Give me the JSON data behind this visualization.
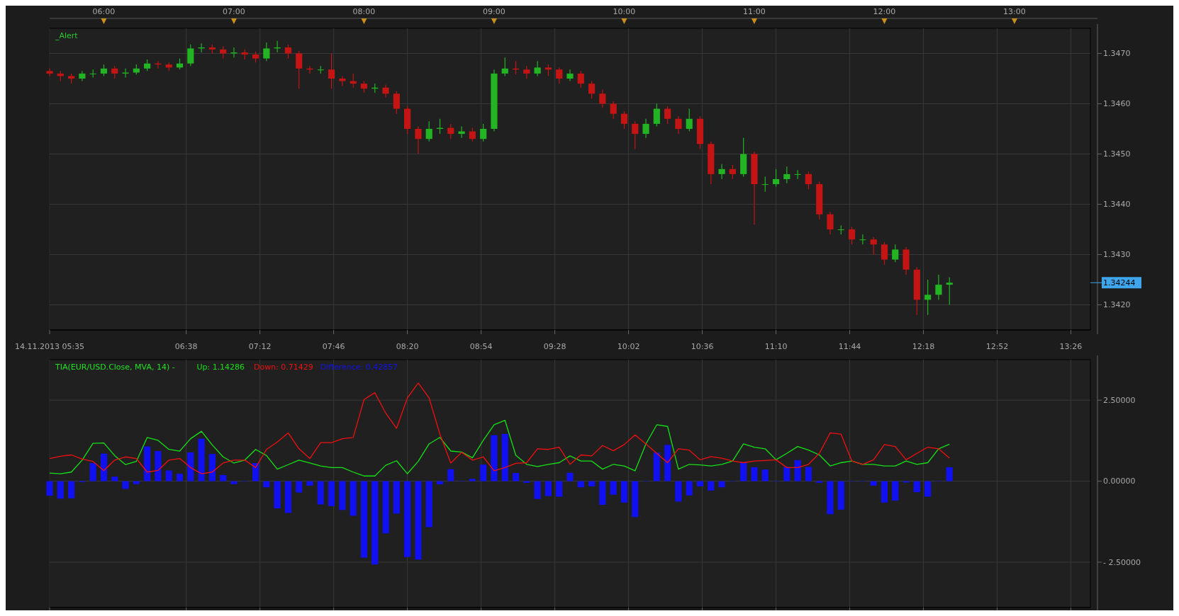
{
  "chart_data": [
    {
      "type": "candlestick",
      "x": [
        5.5833,
        5.6667,
        5.75,
        5.8333,
        5.9167,
        6,
        6.0833,
        6.1667,
        6.25,
        6.3333,
        6.4167,
        6.5,
        6.5833,
        6.6667,
        6.75,
        6.8333,
        6.9167,
        7,
        7.0833,
        7.1667,
        7.25,
        7.3333,
        7.4167,
        7.5,
        7.5833,
        7.6667,
        7.75,
        7.8333,
        7.9167,
        8,
        8.0833,
        8.1667,
        8.25,
        8.3333,
        8.4167,
        8.5,
        8.5833,
        8.6667,
        8.75,
        8.8333,
        8.9167,
        9,
        9.0833,
        9.1667,
        9.25,
        9.3333,
        9.4167,
        9.5,
        9.5833,
        9.6667,
        9.75,
        9.8333,
        9.9167,
        10,
        10.0833,
        10.1667,
        10.25,
        10.3333,
        10.4167,
        10.5,
        10.5833,
        10.6667,
        10.75,
        10.8333,
        10.9167,
        11,
        11.0833,
        11.1667,
        11.25,
        11.3333,
        11.4167,
        11.5,
        11.5833,
        11.6667,
        11.75,
        11.8333,
        11.9167,
        12,
        12.0833,
        12.1667,
        12.25,
        12.3333,
        12.4167,
        12.5
      ],
      "ohlc": [
        [
          1.34665,
          1.3467,
          1.34655,
          1.3466
        ],
        [
          1.3466,
          1.34665,
          1.34645,
          1.34655
        ],
        [
          1.34655,
          1.3466,
          1.3464,
          1.3465
        ],
        [
          1.3465,
          1.34665,
          1.34645,
          1.3466
        ],
        [
          1.3466,
          1.34668,
          1.34652,
          1.3466
        ],
        [
          1.3466,
          1.34678,
          1.34655,
          1.3467
        ],
        [
          1.3467,
          1.34675,
          1.3465,
          1.3466
        ],
        [
          1.3466,
          1.3467,
          1.34652,
          1.34662
        ],
        [
          1.34662,
          1.34678,
          1.34658,
          1.3467
        ],
        [
          1.3467,
          1.34688,
          1.34665,
          1.3468
        ],
        [
          1.3468,
          1.34685,
          1.3467,
          1.34678
        ],
        [
          1.34678,
          1.34682,
          1.34665,
          1.34672
        ],
        [
          1.34672,
          1.3469,
          1.34668,
          1.3468
        ],
        [
          1.3468,
          1.34718,
          1.34675,
          1.3471
        ],
        [
          1.3471,
          1.3472,
          1.34702,
          1.34712
        ],
        [
          1.34712,
          1.34718,
          1.347,
          1.34708
        ],
        [
          1.34708,
          1.34714,
          1.3469,
          1.347
        ],
        [
          1.347,
          1.34712,
          1.34692,
          1.34702
        ],
        [
          1.34702,
          1.34708,
          1.34688,
          1.34698
        ],
        [
          1.34698,
          1.34704,
          1.34682,
          1.3469
        ],
        [
          1.3469,
          1.34722,
          1.34685,
          1.3471
        ],
        [
          1.3471,
          1.34725,
          1.34702,
          1.34712
        ],
        [
          1.34712,
          1.34718,
          1.3469,
          1.347
        ],
        [
          1.347,
          1.34705,
          1.3463,
          1.3467
        ],
        [
          1.3467,
          1.34675,
          1.3466,
          1.34668
        ],
        [
          1.34668,
          1.34675,
          1.3466,
          1.34668
        ],
        [
          1.34668,
          1.347,
          1.3463,
          1.3465
        ],
        [
          1.3465,
          1.34655,
          1.34635,
          1.34645
        ],
        [
          1.34645,
          1.3466,
          1.34632,
          1.3464
        ],
        [
          1.3464,
          1.34645,
          1.34622,
          1.3463
        ],
        [
          1.3463,
          1.3464,
          1.34622,
          1.34632
        ],
        [
          1.34632,
          1.34638,
          1.34612,
          1.3462
        ],
        [
          1.3462,
          1.34625,
          1.3458,
          1.3459
        ],
        [
          1.3459,
          1.34595,
          1.3454,
          1.3455
        ],
        [
          1.3455,
          1.34555,
          1.345,
          1.3453
        ],
        [
          1.3453,
          1.34565,
          1.34525,
          1.3455
        ],
        [
          1.3455,
          1.3457,
          1.3454,
          1.34552
        ],
        [
          1.34552,
          1.3456,
          1.3453,
          1.3454
        ],
        [
          1.3454,
          1.34555,
          1.34532,
          1.34545
        ],
        [
          1.34545,
          1.34552,
          1.34525,
          1.3453
        ],
        [
          1.3453,
          1.3456,
          1.34525,
          1.3455
        ],
        [
          1.3455,
          1.34668,
          1.34545,
          1.3466
        ],
        [
          1.3466,
          1.34692,
          1.34655,
          1.3467
        ],
        [
          1.3467,
          1.34685,
          1.34658,
          1.34668
        ],
        [
          1.34668,
          1.34675,
          1.3465,
          1.3466
        ],
        [
          1.3466,
          1.34685,
          1.34655,
          1.34672
        ],
        [
          1.34672,
          1.34678,
          1.34655,
          1.34668
        ],
        [
          1.34668,
          1.34672,
          1.3464,
          1.3465
        ],
        [
          1.3465,
          1.34668,
          1.34645,
          1.3466
        ],
        [
          1.3466,
          1.34665,
          1.34632,
          1.3464
        ],
        [
          1.3464,
          1.34645,
          1.3461,
          1.3462
        ],
        [
          1.3462,
          1.34628,
          1.34592,
          1.346
        ],
        [
          1.346,
          1.34605,
          1.3457,
          1.3458
        ],
        [
          1.3458,
          1.34585,
          1.3455,
          1.3456
        ],
        [
          1.3456,
          1.34565,
          1.3451,
          1.3454
        ],
        [
          1.3454,
          1.3457,
          1.34532,
          1.3456
        ],
        [
          1.3456,
          1.346,
          1.34555,
          1.3459
        ],
        [
          1.3459,
          1.34595,
          1.3456,
          1.3457
        ],
        [
          1.3457,
          1.34575,
          1.3454,
          1.3455
        ],
        [
          1.3455,
          1.3459,
          1.34545,
          1.3457
        ],
        [
          1.3457,
          1.34575,
          1.3451,
          1.3452
        ],
        [
          1.3452,
          1.34525,
          1.3444,
          1.3446
        ],
        [
          1.3446,
          1.3448,
          1.3445,
          1.3447
        ],
        [
          1.3447,
          1.34478,
          1.3445,
          1.3446
        ],
        [
          1.3446,
          1.34532,
          1.34455,
          1.345
        ],
        [
          1.345,
          1.34505,
          1.3436,
          1.3444
        ],
        [
          1.3444,
          1.34455,
          1.34425,
          1.3444
        ],
        [
          1.3444,
          1.3447,
          1.34435,
          1.3445
        ],
        [
          1.3445,
          1.34475,
          1.34442,
          1.3446
        ],
        [
          1.3446,
          1.34468,
          1.3445,
          1.3446
        ],
        [
          1.3446,
          1.34465,
          1.3443,
          1.3444
        ],
        [
          1.3444,
          1.34445,
          1.3437,
          1.3438
        ],
        [
          1.3438,
          1.34385,
          1.3434,
          1.3435
        ],
        [
          1.3435,
          1.34358,
          1.3434,
          1.3435
        ],
        [
          1.3435,
          1.34355,
          1.3432,
          1.3433
        ],
        [
          1.3433,
          1.3434,
          1.3432,
          1.3433
        ],
        [
          1.3433,
          1.34335,
          1.343,
          1.3432
        ],
        [
          1.3432,
          1.34325,
          1.3428,
          1.3429
        ],
        [
          1.3429,
          1.3432,
          1.34285,
          1.3431
        ],
        [
          1.3431,
          1.34315,
          1.3426,
          1.3427
        ],
        [
          1.3427,
          1.34275,
          1.3418,
          1.3421
        ],
        [
          1.3421,
          1.3425,
          1.3418,
          1.3422
        ],
        [
          1.3422,
          1.3426,
          1.3421,
          1.3424
        ],
        [
          1.3424,
          1.34255,
          1.342,
          1.34244
        ]
      ],
      "colors": [
        "#c41414",
        "#c41414",
        "#c41414",
        "#22b422",
        "#22b422",
        "#22b422",
        "#c41414",
        "#22b422",
        "#22b422",
        "#22b422",
        "#c41414",
        "#c41414",
        "#22b422",
        "#22b422",
        "#22b422",
        "#c41414",
        "#c41414",
        "#22b422",
        "#c41414",
        "#c41414",
        "#22b422",
        "#22b422",
        "#c41414",
        "#c41414",
        "#c41414",
        "#22b422",
        "#c41414",
        "#c41414",
        "#c41414",
        "#c41414",
        "#22b422",
        "#c41414",
        "#c41414",
        "#c41414",
        "#c41414",
        "#22b422",
        "#22b422",
        "#c41414",
        "#22b422",
        "#c41414",
        "#22b422",
        "#22b422",
        "#22b422",
        "#c41414",
        "#c41414",
        "#22b422",
        "#c41414",
        "#c41414",
        "#22b422",
        "#c41414",
        "#c41414",
        "#c41414",
        "#c41414",
        "#c41414",
        "#c41414",
        "#22b422",
        "#22b422",
        "#c41414",
        "#c41414",
        "#22b422",
        "#c41414",
        "#c41414",
        "#22b422",
        "#c41414",
        "#22b422",
        "#c41414",
        "#22b422",
        "#22b422",
        "#22b422",
        "#22b422",
        "#c41414",
        "#c41414",
        "#c41414",
        "#22b422",
        "#c41414",
        "#22b422",
        "#c41414",
        "#c41414",
        "#22b422",
        "#c41414",
        "#c41414",
        "#22b422",
        "#22b422",
        "#22b422"
      ],
      "xlim": [
        5.5833,
        13.5833
      ],
      "xticks": [
        {
          "value": 5.5833,
          "label": "14.11.2013 05:35"
        },
        {
          "value": 6.6333,
          "label": "06:38"
        },
        {
          "value": 7.2,
          "label": "07:12"
        },
        {
          "value": 7.7667,
          "label": "07:46"
        },
        {
          "value": 8.3333,
          "label": "08:20"
        },
        {
          "value": 8.9,
          "label": "08:54"
        },
        {
          "value": 9.4667,
          "label": "09:28"
        },
        {
          "value": 10.0333,
          "label": "10:02"
        },
        {
          "value": 10.6,
          "label": "10:36"
        },
        {
          "value": 11.1667,
          "label": "11:10"
        },
        {
          "value": 11.7333,
          "label": "11:44"
        },
        {
          "value": 12.3,
          "label": "12:18"
        },
        {
          "value": 12.8667,
          "label": "12:52"
        },
        {
          "value": 13.4333,
          "label": "13:26"
        }
      ],
      "x2lim": [
        5.5833,
        13.5833
      ],
      "x2ticks": [
        {
          "value": 6,
          "label": "06:00"
        },
        {
          "value": 7,
          "label": "07:00"
        },
        {
          "value": 8,
          "label": "08:00"
        },
        {
          "value": 9,
          "label": "09:00"
        },
        {
          "value": 10,
          "label": "10:00"
        },
        {
          "value": 11,
          "label": "11:00"
        },
        {
          "value": 12,
          "label": "12:00"
        },
        {
          "value": 13,
          "label": "13:00"
        }
      ],
      "ylim": [
        1.3415,
        1.3475
      ],
      "yticks": [
        {
          "value": 1.342,
          "label": "1.3420"
        },
        {
          "value": 1.343,
          "label": "1.3430"
        },
        {
          "value": 1.344,
          "label": "1.3440"
        },
        {
          "value": 1.345,
          "label": "1.3450"
        },
        {
          "value": 1.346,
          "label": "1.3460"
        },
        {
          "value": 1.347,
          "label": "1.3470"
        }
      ],
      "ref_lines": [
        {
          "axis": "y",
          "value": 1.34244,
          "label": "1.34244",
          "color": "#3fa6ee"
        }
      ],
      "annotations": [
        "_Alert"
      ],
      "grid": true
    },
    {
      "type": "bar",
      "title": "TIA(EUR/USD.Close, MVA, 14) -",
      "x": [
        5.5833,
        5.6667,
        5.75,
        5.8333,
        5.9167,
        6,
        6.0833,
        6.1667,
        6.25,
        6.3333,
        6.4167,
        6.5,
        6.5833,
        6.6667,
        6.75,
        6.8333,
        6.9167,
        7,
        7.0833,
        7.1667,
        7.25,
        7.3333,
        7.4167,
        7.5,
        7.5833,
        7.6667,
        7.75,
        7.8333,
        7.9167,
        8,
        8.0833,
        8.1667,
        8.25,
        8.3333,
        8.4167,
        8.5,
        8.5833,
        8.6667,
        8.75,
        8.8333,
        8.9167,
        9,
        9.0833,
        9.1667,
        9.25,
        9.3333,
        9.4167,
        9.5,
        9.5833,
        9.6667,
        9.75,
        9.8333,
        9.9167,
        10,
        10.0833,
        10.1667,
        10.25,
        10.3333,
        10.4167,
        10.5,
        10.5833,
        10.6667,
        10.75,
        10.8333,
        10.9167,
        11,
        11.0833,
        11.1667,
        11.25,
        11.3333,
        11.4167,
        11.5,
        11.5833,
        11.6667,
        11.75,
        11.8333,
        11.9167,
        12,
        12.0833,
        12.1667,
        12.25,
        12.3333,
        12.4167,
        12.5
      ],
      "series": [
        {
          "name": "Up: 1.14286",
          "type": "line",
          "color": "#16e016",
          "values": [
            0.25,
            0.23,
            0.28,
            0.65,
            1.17,
            1.18,
            0.79,
            0.51,
            0.61,
            1.35,
            1.26,
            0.98,
            0.93,
            1.31,
            1.54,
            1.12,
            0.75,
            0.56,
            0.65,
            0.98,
            0.79,
            0.37,
            0.51,
            0.65,
            0.56,
            0.47,
            0.42,
            0.42,
            0.28,
            0.16,
            0.16,
            0.49,
            0.63,
            0.23,
            0.61,
            1.15,
            1.35,
            0.93,
            0.9,
            0.72,
            1.26,
            1.74,
            1.88,
            0.8,
            0.52,
            0.45,
            0.52,
            0.57,
            0.78,
            0.62,
            0.62,
            0.37,
            0.52,
            0.47,
            0.32,
            1.15,
            1.74,
            1.69,
            0.37,
            0.52,
            0.5,
            0.47,
            0.52,
            0.62,
            1.15,
            1.05,
            1.0,
            0.66,
            0.86,
            1.07,
            0.96,
            0.81,
            0.47,
            0.57,
            0.62,
            0.52,
            0.52,
            0.47,
            0.47,
            0.62,
            0.52,
            0.57,
            1.0,
            1.14
          ]
        },
        {
          "name": "Down: 0.71429",
          "type": "line",
          "color": "#f01010",
          "values": [
            0.7,
            0.77,
            0.81,
            0.68,
            0.61,
            0.33,
            0.65,
            0.75,
            0.7,
            0.28,
            0.33,
            0.65,
            0.7,
            0.42,
            0.23,
            0.28,
            0.56,
            0.65,
            0.65,
            0.42,
            0.98,
            1.21,
            1.49,
            1.0,
            0.7,
            1.19,
            1.19,
            1.31,
            1.35,
            2.52,
            2.73,
            2.1,
            1.63,
            2.57,
            3.03,
            2.57,
            1.45,
            0.56,
            0.89,
            0.65,
            0.75,
            0.32,
            0.42,
            0.55,
            0.57,
            1.0,
            0.98,
            1.05,
            0.52,
            0.81,
            0.78,
            1.1,
            0.94,
            1.13,
            1.43,
            1.15,
            0.86,
            0.57,
            1.0,
            0.96,
            0.66,
            0.76,
            0.71,
            0.62,
            0.57,
            0.62,
            0.64,
            0.66,
            0.42,
            0.42,
            0.52,
            0.86,
            1.49,
            1.45,
            0.62,
            0.52,
            0.66,
            1.13,
            1.07,
            0.66,
            0.86,
            1.05,
            1.0,
            0.71
          ]
        },
        {
          "name": "Difference: 0.42857",
          "type": "bar",
          "color": "#1010f0",
          "values": [
            -0.45,
            -0.54,
            -0.53,
            -0.03,
            0.56,
            0.85,
            0.14,
            -0.24,
            -0.09,
            1.07,
            0.93,
            0.33,
            0.23,
            0.89,
            1.31,
            0.84,
            0.19,
            -0.09,
            0,
            0.56,
            -0.19,
            -0.84,
            -0.98,
            -0.35,
            -0.14,
            -0.72,
            -0.77,
            -0.89,
            -1.07,
            -2.36,
            -2.57,
            -1.61,
            -1.0,
            -2.34,
            -2.42,
            -1.42,
            -0.1,
            0.37,
            0.01,
            0.07,
            0.51,
            1.42,
            1.46,
            0.25,
            -0.05,
            -0.55,
            -0.46,
            -0.48,
            0.26,
            -0.19,
            -0.16,
            -0.73,
            -0.42,
            -0.66,
            -1.11,
            0,
            0.88,
            1.12,
            -0.63,
            -0.44,
            -0.16,
            -0.29,
            -0.19,
            0,
            0.58,
            0.43,
            0.36,
            0,
            0.44,
            0.65,
            0.44,
            -0.05,
            -1.02,
            -0.88,
            0,
            0,
            -0.14,
            -0.66,
            -0.6,
            -0.04,
            -0.34,
            -0.48,
            0,
            0.43
          ]
        }
      ],
      "xlim": [
        5.5833,
        13.5833
      ],
      "xticks": [
        5.5833,
        6.6333,
        7.2,
        7.7667,
        8.3333,
        8.9,
        9.4667,
        10.0333,
        10.6,
        11.1667,
        11.7333,
        12.3,
        12.8667,
        13.4333
      ],
      "ylim": [
        -3.9,
        3.75
      ],
      "yticks": [
        {
          "value": -2.5,
          "label": "- 2.50000"
        },
        {
          "value": 0,
          "label": "0.00000"
        },
        {
          "value": 2.5,
          "label": "2.50000"
        }
      ],
      "tick_labels": "y",
      "legend": "top left",
      "grid": true
    }
  ]
}
